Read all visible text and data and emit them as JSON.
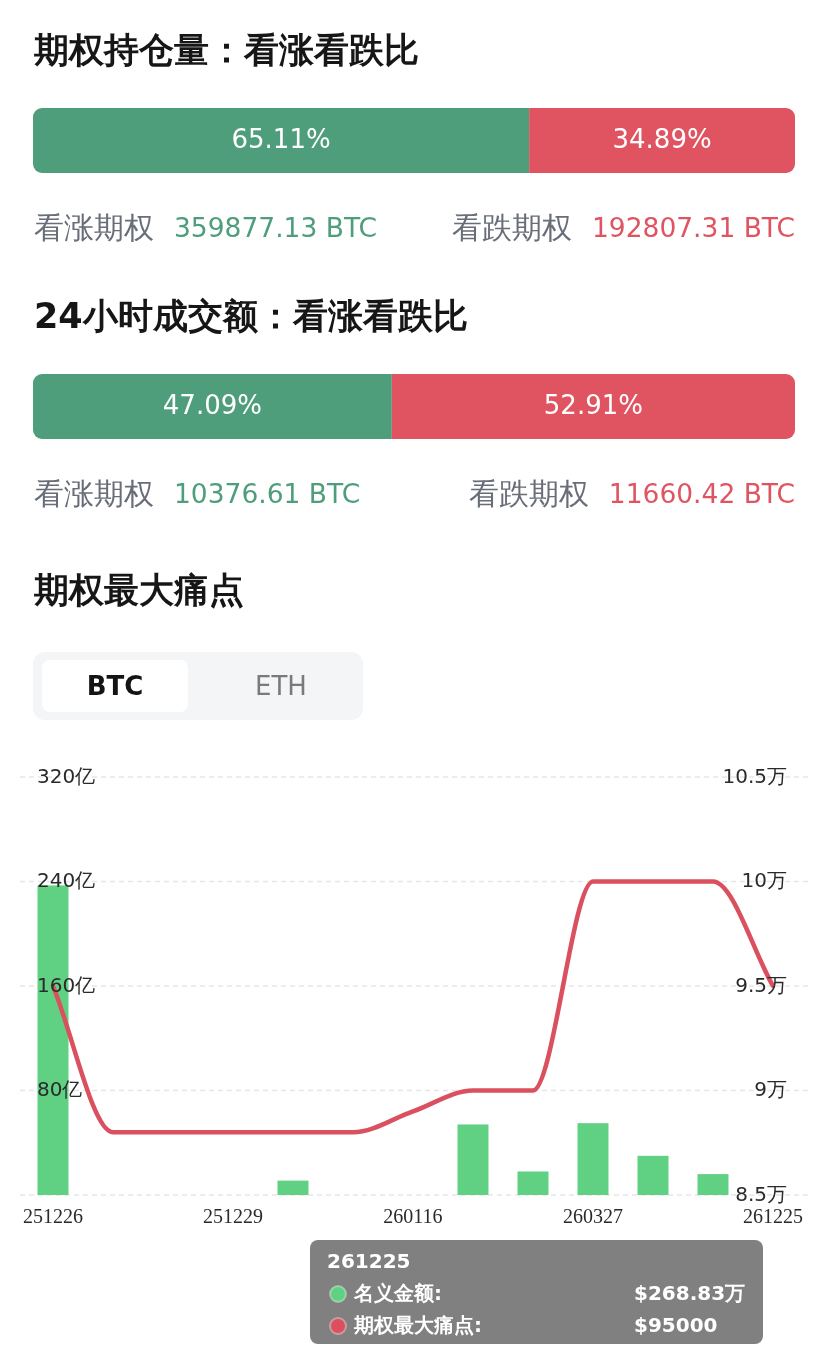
{
  "chart_data": [
    {
      "type": "bar",
      "title": "期权持仓量：看涨看跌比",
      "orientation": "horizontal",
      "stacked": true,
      "categories": [
        null
      ],
      "xlim": [
        0,
        100
      ],
      "legend": "bottom",
      "series": [
        {
          "name": "看涨期权",
          "color": "#4e9d7b",
          "values": [
            65.11
          ],
          "value_labels": [
            "65.11%"
          ]
        },
        {
          "name": "看跌期权",
          "color": "#e05461",
          "values": [
            34.89
          ],
          "value_labels": [
            "34.89%"
          ]
        }
      ],
      "annotations": [
        "359877.13 BTC",
        "192807.31 BTC"
      ]
    },
    {
      "type": "bar",
      "title": "24小时成交额：看涨看跌比",
      "orientation": "horizontal",
      "stacked": true,
      "categories": [
        null
      ],
      "xlim": [
        0,
        100
      ],
      "legend": "bottom",
      "series": [
        {
          "name": "看涨期权",
          "color": "#4e9d7b",
          "values": [
            47.09
          ],
          "value_labels": [
            "47.09%"
          ]
        },
        {
          "name": "看跌期权",
          "color": "#e05461",
          "values": [
            52.91
          ],
          "value_labels": [
            "52.91%"
          ]
        }
      ],
      "annotations": [
        "10376.61 BTC",
        "11660.42 BTC"
      ]
    },
    {
      "type": "bar",
      "title": "期权最大痛点",
      "categories": [
        "251226",
        null,
        null,
        "251229",
        null,
        null,
        "260116",
        null,
        null,
        "260327",
        null,
        null,
        "261225"
      ],
      "ylim": [
        0,
        320
      ],
      "yticks": [
        {
          "value": 0,
          "label": null
        },
        {
          "value": 80,
          "label": "80亿"
        },
        {
          "value": 160,
          "label": "160亿"
        },
        {
          "value": 240,
          "label": "240亿"
        },
        {
          "value": 320,
          "label": "320亿"
        }
      ],
      "y2lim": [
        8.5,
        10.5
      ],
      "y2ticks": [
        {
          "value": 8.5,
          "label": "8.5万"
        },
        {
          "value": 9,
          "label": "9万"
        },
        {
          "value": 9.5,
          "label": "9.5万"
        },
        {
          "value": 10,
          "label": "10万"
        },
        {
          "value": 10.5,
          "label": "10.5万"
        }
      ],
      "grid": "y",
      "legend": "bottom",
      "series": [
        {
          "name": "名义金额:",
          "type": "bar",
          "color": "#60d183",
          "values": [
            237,
            null,
            null,
            null,
            11,
            null,
            null,
            54,
            18,
            55,
            30,
            16,
            0.026883
          ]
        },
        {
          "name": "期权最大痛点:",
          "type": "line",
          "axis": "y2",
          "color": "#da505e",
          "values": [
            9.5,
            8.8,
            8.8,
            8.8,
            8.8,
            8.8,
            8.9,
            9,
            9,
            10,
            10,
            10,
            9.5
          ]
        }
      ],
      "annotations": [
        "BTC",
        "ETH",
        "261225",
        "$268.83万",
        "$95000"
      ]
    }
  ]
}
